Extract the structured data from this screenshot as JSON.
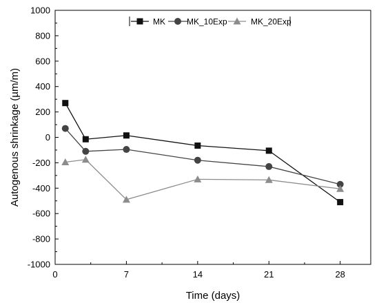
{
  "chart_data": {
    "type": "line",
    "title": "",
    "xlabel": "Time (days)",
    "ylabel": "Autogenous shrinkage (µm/m)",
    "xlim": [
      0,
      31
    ],
    "ylim": [
      -1000,
      1000
    ],
    "xticks": [
      0,
      7,
      14,
      21,
      28
    ],
    "yticks": [
      -1000,
      -800,
      -600,
      -400,
      -200,
      0,
      200,
      400,
      600,
      800,
      1000
    ],
    "grid": false,
    "legend_position": "top-right",
    "x": [
      1,
      3,
      7,
      14,
      21,
      28
    ],
    "series": [
      {
        "name": "MK",
        "marker": "square",
        "color": "#111111",
        "values": [
          270,
          -15,
          15,
          -65,
          -105,
          -510
        ]
      },
      {
        "name": "MK_10Exp",
        "marker": "circle",
        "color": "#444444",
        "values": [
          70,
          -110,
          -95,
          -180,
          -230,
          -370
        ]
      },
      {
        "name": "MK_20Exp",
        "marker": "triangle",
        "color": "#8c8c8c",
        "values": [
          -195,
          -175,
          -490,
          -330,
          -335,
          -405
        ]
      }
    ]
  }
}
